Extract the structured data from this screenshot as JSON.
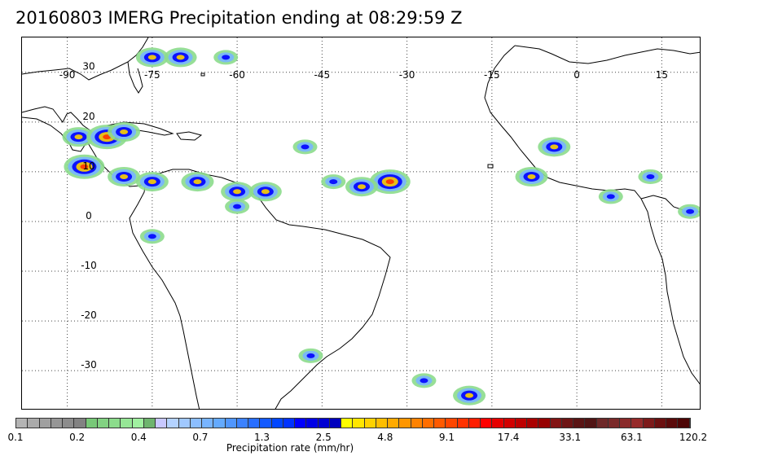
{
  "title": "20160803 IMERG Precipitation ending at 08:29:59 Z",
  "map": {
    "lon_range": [
      -98,
      22
    ],
    "lat_range": [
      -38,
      37
    ],
    "lon_labels": [
      "-90",
      "-75",
      "-60",
      "-45",
      "-30",
      "-15",
      "0",
      "15"
    ],
    "lat_labels": [
      "30",
      "20",
      "10",
      "0",
      "-10",
      "-20",
      "-30"
    ],
    "grid_style": "dotted",
    "coastline_color": "#000000"
  },
  "precip_cells": [
    {
      "lon": -75,
      "lat": 33,
      "intensity": 3
    },
    {
      "lon": -70,
      "lat": 33,
      "intensity": 3
    },
    {
      "lon": -62,
      "lat": 33,
      "intensity": 2
    },
    {
      "lon": -88,
      "lat": 17,
      "intensity": 3
    },
    {
      "lon": -83,
      "lat": 17,
      "intensity": 4
    },
    {
      "lon": -80,
      "lat": 18,
      "intensity": 3
    },
    {
      "lon": -87,
      "lat": 11,
      "intensity": 4
    },
    {
      "lon": -80,
      "lat": 9,
      "intensity": 3
    },
    {
      "lon": -75,
      "lat": 8,
      "intensity": 3
    },
    {
      "lon": -67,
      "lat": 8,
      "intensity": 3
    },
    {
      "lon": -60,
      "lat": 6,
      "intensity": 3
    },
    {
      "lon": -55,
      "lat": 6,
      "intensity": 3
    },
    {
      "lon": -48,
      "lat": 15,
      "intensity": 2
    },
    {
      "lon": -43,
      "lat": 8,
      "intensity": 2
    },
    {
      "lon": -33,
      "lat": 8,
      "intensity": 4
    },
    {
      "lon": -38,
      "lat": 7,
      "intensity": 3
    },
    {
      "lon": -4,
      "lat": 15,
      "intensity": 3
    },
    {
      "lon": -8,
      "lat": 9,
      "intensity": 3
    },
    {
      "lon": 13,
      "lat": 9,
      "intensity": 2
    },
    {
      "lon": 6,
      "lat": 5,
      "intensity": 2
    },
    {
      "lon": 20,
      "lat": 2,
      "intensity": 2
    },
    {
      "lon": -75,
      "lat": -3,
      "intensity": 2
    },
    {
      "lon": -60,
      "lat": 3,
      "intensity": 2
    },
    {
      "lon": -27,
      "lat": -32,
      "intensity": 2
    },
    {
      "lon": -19,
      "lat": -35,
      "intensity": 3
    },
    {
      "lon": -47,
      "lat": -27,
      "intensity": 2
    }
  ],
  "colorbar": {
    "colors": [
      "#b4b4b4",
      "#aaaaaa",
      "#a0a0a0",
      "#969696",
      "#8c8c8c",
      "#828282",
      "#78c878",
      "#82d282",
      "#8cdc8c",
      "#96e696",
      "#a0f0a0",
      "#6eb46e",
      "#c8c8ff",
      "#b4d2ff",
      "#a0c8ff",
      "#8cbeff",
      "#78b4ff",
      "#64aaff",
      "#5096ff",
      "#3c82ff",
      "#286eff",
      "#145aff",
      "#0046ff",
      "#0032ff",
      "#0000ff",
      "#0000e6",
      "#0000d2",
      "#0000be",
      "#ffff00",
      "#ffe600",
      "#ffd200",
      "#ffbe00",
      "#ffaa00",
      "#ff9600",
      "#ff8200",
      "#ff6e00",
      "#ff5a00",
      "#ff4600",
      "#ff3200",
      "#ff1e00",
      "#ff0000",
      "#e60000",
      "#d20000",
      "#be0000",
      "#aa0000",
      "#960000",
      "#821414",
      "#6e1414",
      "#5a1414",
      "#501414",
      "#6e2828",
      "#7a2a2a",
      "#8a2a2a",
      "#962a2a",
      "#7d1a1a",
      "#6b1010",
      "#5a0a0a",
      "#4d0505"
    ],
    "tick_labels": [
      "0.1",
      "0.2",
      "0.4",
      "0.7",
      "1.3",
      "2.5",
      "4.8",
      "9.1",
      "17.4",
      "33.1",
      "63.1",
      "120.2"
    ],
    "label": "Precipitation rate (mm/hr)"
  }
}
